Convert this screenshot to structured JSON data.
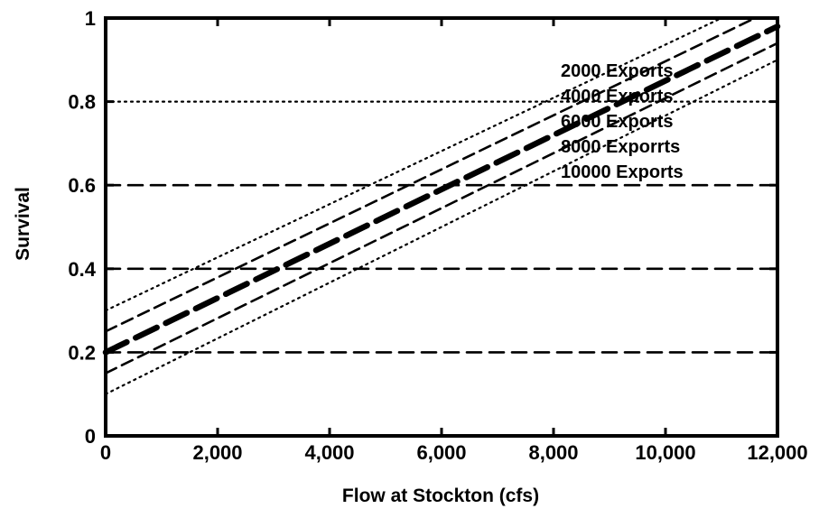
{
  "chart_data": {
    "type": "line",
    "title": "",
    "xlabel": "Flow at Stockton (cfs)",
    "ylabel": "Survival",
    "xlim": [
      0,
      12000
    ],
    "ylim": [
      0,
      1
    ],
    "x_ticks": [
      {
        "value": 0,
        "label": "0"
      },
      {
        "value": 2000,
        "label": "2,000"
      },
      {
        "value": 4000,
        "label": "4,000"
      },
      {
        "value": 6000,
        "label": "6,000"
      },
      {
        "value": 8000,
        "label": "8,000"
      },
      {
        "value": 10000,
        "label": "10,000"
      },
      {
        "value": 12000,
        "label": "12,000"
      }
    ],
    "y_ticks": [
      {
        "value": 0,
        "label": "0"
      },
      {
        "value": 0.2,
        "label": "0.2"
      },
      {
        "value": 0.4,
        "label": "0.4"
      },
      {
        "value": 0.6,
        "label": "0.6"
      },
      {
        "value": 0.8,
        "label": "0.8"
      },
      {
        "value": 1,
        "label": "1"
      }
    ],
    "grid": true,
    "grid_lines": [
      {
        "y": 0.2,
        "style": "dashed"
      },
      {
        "y": 0.4,
        "style": "dashed"
      },
      {
        "y": 0.6,
        "style": "dashed"
      },
      {
        "y": 0.8,
        "style": "dotted"
      }
    ],
    "legend_position": "top-right",
    "series": [
      {
        "name": "2000 Exports",
        "style": "dotted",
        "x": [
          0,
          11000
        ],
        "y": [
          0.3,
          1.0
        ]
      },
      {
        "name": "4000 Exports",
        "style": "dashed",
        "x": [
          0,
          11600
        ],
        "y": [
          0.25,
          1.0
        ]
      },
      {
        "name": "6000 Exports",
        "style": "heavy-dashed",
        "x": [
          0,
          12000
        ],
        "y": [
          0.2,
          0.98
        ]
      },
      {
        "name": "8000 Exporrts",
        "style": "dashed",
        "x": [
          0,
          12000
        ],
        "y": [
          0.15,
          0.94
        ]
      },
      {
        "name": "10000 Exports",
        "style": "dotted",
        "x": [
          0,
          12000
        ],
        "y": [
          0.1,
          0.9
        ]
      }
    ]
  }
}
